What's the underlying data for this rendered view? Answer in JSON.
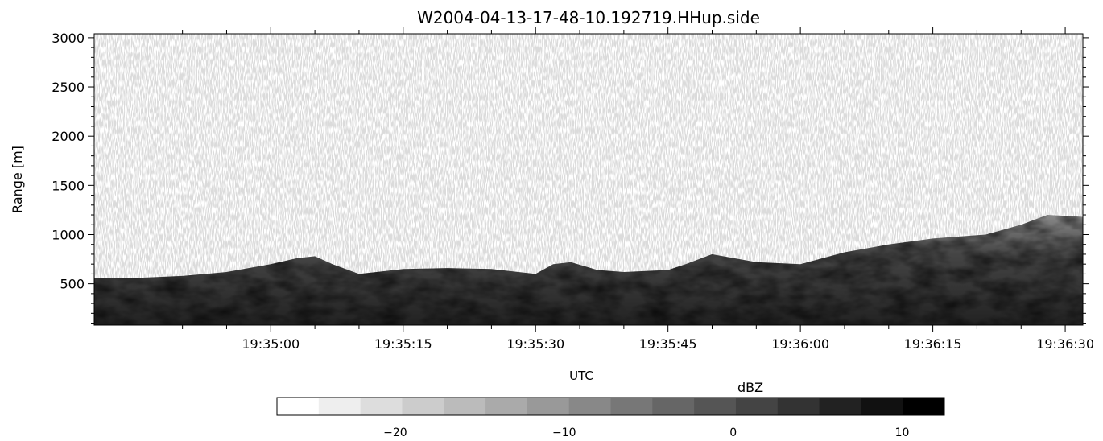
{
  "chart_data": {
    "type": "heatmap",
    "title": "W2004-04-13-17-48-10.192719.HHup.side",
    "xlabel": "UTC",
    "ylabel": "Range [m]",
    "y_range_m": [
      80,
      3040
    ],
    "y_ticks": [
      500,
      1000,
      1500,
      2000,
      2500,
      3000
    ],
    "y_tick_labels": [
      "500",
      "1000",
      "1500",
      "2000",
      "2500",
      "3000"
    ],
    "x_range_s_after_19_34_45": [
      -5,
      107
    ],
    "x_ticks_s_after_19_34_45": [
      15,
      30,
      45,
      60,
      75,
      90,
      105
    ],
    "x_tick_labels": [
      "19:35:00",
      "19:35:15",
      "19:35:30",
      "19:35:45",
      "19:36:00",
      "19:36:15",
      "19:36:30"
    ],
    "colorscale": "grayscale (white = low, black = high)",
    "colorbar": {
      "label": "dBZ",
      "range": [
        -27,
        12.5
      ],
      "levels": 16,
      "ticks": [
        -20,
        -10,
        0,
        10
      ],
      "tick_labels": [
        "−20",
        "−10",
        "0",
        "10"
      ]
    },
    "echo_top_profile": {
      "x_s": [
        -5,
        0,
        5,
        10,
        15,
        18,
        20,
        22,
        25,
        27,
        30,
        35,
        40,
        45,
        47,
        49,
        52,
        55,
        60,
        62,
        65,
        70,
        75,
        80,
        85,
        90,
        93,
        96,
        100,
        103,
        107
      ],
      "top_m": [
        560,
        560,
        580,
        620,
        700,
        760,
        780,
        700,
        600,
        620,
        650,
        660,
        650,
        600,
        700,
        720,
        640,
        620,
        640,
        700,
        800,
        720,
        700,
        820,
        900,
        960,
        980,
        1000,
        1100,
        1200,
        1180
      ]
    }
  }
}
